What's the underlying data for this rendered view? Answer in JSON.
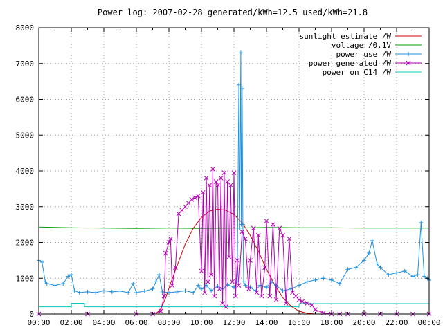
{
  "chart_data": {
    "type": "line",
    "title": "Power log: 2007-02-28 generated/kWh=12.5 used/kWh=21.8",
    "xlabel": "",
    "ylabel": "",
    "xlim": [
      0,
      24
    ],
    "ylim": [
      0,
      8000
    ],
    "x_tick_labels": [
      "00:00",
      "02:00",
      "04:00",
      "06:00",
      "08:00",
      "10:00",
      "12:00",
      "14:00",
      "16:00",
      "18:00",
      "20:00",
      "22:00",
      "00:00"
    ],
    "y_tick_labels": [
      "0",
      "1000",
      "2000",
      "3000",
      "4000",
      "5000",
      "6000",
      "7000",
      "8000"
    ],
    "y_ticks": [
      0,
      1000,
      2000,
      3000,
      4000,
      5000,
      6000,
      7000,
      8000
    ],
    "grid": true,
    "legend_position": "top-right",
    "series": [
      {
        "name": "sunlight estimate /W",
        "color": "#d40000",
        "marker": "none",
        "x": [
          7.2,
          7.5,
          7.8,
          8.1,
          8.5,
          9.0,
          9.5,
          10.0,
          10.5,
          11.0,
          11.5,
          12.0,
          12.5,
          13.0,
          13.5,
          14.0,
          14.5,
          15.0,
          15.5,
          16.0,
          16.5,
          17.0
        ],
        "values": [
          0,
          150,
          450,
          850,
          1350,
          1950,
          2400,
          2700,
          2880,
          2930,
          2900,
          2780,
          2550,
          2200,
          1750,
          1250,
          820,
          460,
          220,
          80,
          20,
          0
        ]
      },
      {
        "name": "voltage /0.1V",
        "color": "#00a000",
        "marker": "none",
        "x": [
          0,
          2,
          4,
          6,
          8,
          10,
          12,
          14,
          16,
          18,
          20,
          22,
          24
        ],
        "values": [
          2430,
          2410,
          2400,
          2390,
          2400,
          2390,
          2400,
          2420,
          2410,
          2410,
          2400,
          2400,
          2400
        ]
      },
      {
        "name": "power use /W",
        "color": "#1e90dd",
        "marker": "plus",
        "x": [
          0,
          0.2,
          0.4,
          0.5,
          1.0,
          1.5,
          1.8,
          2.0,
          2.2,
          2.5,
          3.0,
          3.5,
          4.0,
          4.5,
          5.0,
          5.5,
          5.8,
          6.0,
          6.5,
          7.0,
          7.2,
          7.4,
          7.6,
          8.0,
          8.5,
          9.0,
          9.5,
          9.8,
          10.0,
          10.3,
          10.6,
          11.0,
          11.3,
          11.6,
          12.0,
          12.2,
          12.3,
          12.35,
          12.42,
          12.45,
          12.5,
          12.55,
          12.6,
          12.7,
          13.0,
          13.3,
          13.6,
          14.0,
          14.3,
          14.6,
          15.0,
          15.5,
          16.0,
          16.5,
          17.0,
          17.5,
          18.0,
          18.5,
          19.0,
          19.5,
          20.0,
          20.3,
          20.5,
          20.8,
          21.0,
          21.5,
          22.0,
          22.5,
          23.0,
          23.3,
          23.5,
          23.7,
          23.9,
          24.0
        ],
        "values": [
          1500,
          1450,
          900,
          850,
          800,
          850,
          1050,
          1100,
          650,
          600,
          620,
          600,
          650,
          620,
          640,
          600,
          850,
          600,
          640,
          700,
          900,
          1100,
          620,
          600,
          620,
          650,
          600,
          800,
          700,
          800,
          650,
          780,
          700,
          820,
          750,
          900,
          6400,
          2400,
          7300,
          2500,
          6300,
          2500,
          900,
          800,
          750,
          650,
          800,
          750,
          900,
          800,
          650,
          700,
          800,
          900,
          950,
          1000,
          950,
          850,
          1250,
          1300,
          1500,
          1700,
          2050,
          1400,
          1300,
          1100,
          1150,
          1200,
          1050,
          1100,
          2550,
          1050,
          1000,
          950
        ]
      },
      {
        "name": "power generated /W",
        "color": "#b400b4",
        "marker": "x",
        "x": [
          0,
          3,
          6,
          7.0,
          7.5,
          7.7,
          7.8,
          8.0,
          8.1,
          8.2,
          8.4,
          8.6,
          8.8,
          9.0,
          9.2,
          9.4,
          9.6,
          9.8,
          10.0,
          10.1,
          10.2,
          10.3,
          10.4,
          10.5,
          10.6,
          10.7,
          10.8,
          10.9,
          11.0,
          11.1,
          11.2,
          11.3,
          11.4,
          11.5,
          11.6,
          11.7,
          11.8,
          11.9,
          12.0,
          12.1,
          12.2,
          12.3,
          12.5,
          12.7,
          12.9,
          13.0,
          13.2,
          13.4,
          13.5,
          13.7,
          13.9,
          14.0,
          14.2,
          14.4,
          14.6,
          14.8,
          15.0,
          15.2,
          15.4,
          15.6,
          15.8,
          16.0,
          16.2,
          16.5,
          16.8,
          17.0,
          17.5,
          18.0,
          18.5,
          19,
          20,
          21,
          22,
          23,
          24
        ],
        "values": [
          0,
          0,
          0,
          0,
          80,
          500,
          1700,
          2000,
          2100,
          800,
          1300,
          2800,
          2900,
          3000,
          3100,
          3200,
          3250,
          3300,
          1200,
          3400,
          600,
          3800,
          900,
          3600,
          1100,
          4050,
          500,
          3700,
          3600,
          700,
          3800,
          300,
          3950,
          200,
          3700,
          1600,
          3600,
          900,
          3950,
          500,
          1500,
          800,
          2300,
          2100,
          700,
          1500,
          2400,
          600,
          2200,
          500,
          1300,
          2600,
          500,
          2500,
          400,
          2400,
          2200,
          300,
          2100,
          600,
          500,
          400,
          350,
          300,
          250,
          120,
          30,
          0,
          0,
          0,
          0,
          0,
          0,
          0,
          0
        ]
      },
      {
        "name": "power on C14 /W",
        "color": "#00c8c8",
        "marker": "none",
        "x": [
          0,
          2.0,
          2.01,
          2.8,
          2.81,
          4,
          8,
          12,
          16,
          16.01,
          20,
          24
        ],
        "values": [
          200,
          200,
          300,
          300,
          200,
          200,
          200,
          200,
          200,
          290,
          290,
          290
        ]
      }
    ]
  }
}
